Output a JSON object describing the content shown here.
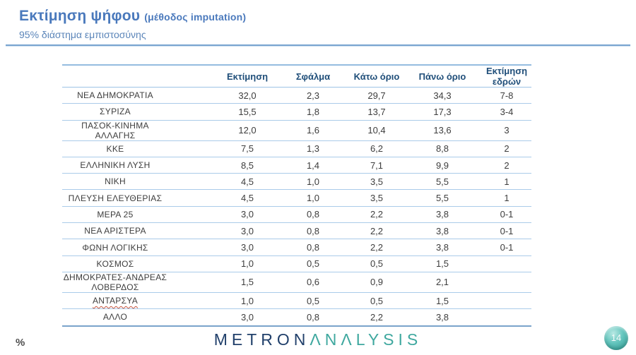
{
  "slide": {
    "title": "Εκτίμηση ψήφου",
    "title_suffix": "(μέθοδος imputation)",
    "subtitle": "95% διάστημα εμπιστοσύνης",
    "footer_percent": "%",
    "page_number": "14",
    "logo": {
      "part1": "METRON",
      "part2": "ΛNΛLYSIS"
    }
  },
  "table": {
    "columns": [
      "",
      "Εκτίμηση",
      "Σφάλμα",
      "Κάτω όριο",
      "Πάνω όριο",
      "Εκτίμηση εδρών"
    ],
    "row_keys": [
      "party",
      "estimate",
      "error",
      "lower",
      "upper",
      "seats"
    ],
    "rows": [
      {
        "party": "ΝΕΑ ΔΗΜΟΚΡΑΤΙΑ",
        "estimate": "32,0",
        "error": "2,3",
        "lower": "29,7",
        "upper": "34,3",
        "seats": "7-8"
      },
      {
        "party": "ΣΥΡΙΖΑ",
        "estimate": "15,5",
        "error": "1,8",
        "lower": "13,7",
        "upper": "17,3",
        "seats": "3-4"
      },
      {
        "party": "ΠΑΣΟΚ-ΚΙΝΗΜΑ ΑΛΛΑΓΗΣ",
        "estimate": "12,0",
        "error": "1,6",
        "lower": "10,4",
        "upper": "13,6",
        "seats": "3"
      },
      {
        "party": "ΚΚΕ",
        "estimate": "7,5",
        "error": "1,3",
        "lower": "6,2",
        "upper": "8,8",
        "seats": "2"
      },
      {
        "party": "ΕΛΛΗΝΙΚΗ ΛΥΣΗ",
        "estimate": "8,5",
        "error": "1,4",
        "lower": "7,1",
        "upper": "9,9",
        "seats": "2"
      },
      {
        "party": "ΝΙΚΗ",
        "estimate": "4,5",
        "error": "1,0",
        "lower": "3,5",
        "upper": "5,5",
        "seats": "1"
      },
      {
        "party": "ΠΛΕΥΣΗ ΕΛΕΥΘΕΡΙΑΣ",
        "estimate": "4,5",
        "error": "1,0",
        "lower": "3,5",
        "upper": "5,5",
        "seats": "1"
      },
      {
        "party": "ΜΕΡΑ 25",
        "estimate": "3,0",
        "error": "0,8",
        "lower": "2,2",
        "upper": "3,8",
        "seats": "0-1"
      },
      {
        "party": "ΝΕΑ ΑΡΙΣΤΕΡΑ",
        "estimate": "3,0",
        "error": "0,8",
        "lower": "2,2",
        "upper": "3,8",
        "seats": "0-1"
      },
      {
        "party": "ΦΩΝΗ ΛΟΓΙΚΗΣ",
        "estimate": "3,0",
        "error": "0,8",
        "lower": "2,2",
        "upper": "3,8",
        "seats": "0-1"
      },
      {
        "party": "ΚΟΣΜΟΣ",
        "estimate": "1,0",
        "error": "0,5",
        "lower": "0,5",
        "upper": "1,5",
        "seats": ""
      },
      {
        "party": "ΔΗΜΟΚΡΑΤΕΣ-ΑΝΔΡΕΑΣ ΛΟΒΕΡΔΟΣ",
        "estimate": "1,5",
        "error": "0,6",
        "lower": "0,9",
        "upper": "2,1",
        "seats": ""
      },
      {
        "party": "ΑΝΤΑΡΣΥΑ",
        "estimate": "1,0",
        "error": "0,5",
        "lower": "0,5",
        "upper": "1,5",
        "seats": "",
        "underline": true
      },
      {
        "party": "ΑΛΛΟ",
        "estimate": "3,0",
        "error": "0,8",
        "lower": "2,2",
        "upper": "3,8",
        "seats": ""
      }
    ]
  },
  "colors": {
    "title_blue": "#4a79bc",
    "header_navy": "#1f4e79",
    "row_line_blue": "#aacbe9",
    "logo_navy": "#21406b",
    "logo_teal": "#3fa89f",
    "badge_teal": "#2d948c",
    "underline_red": "#c4543f"
  }
}
